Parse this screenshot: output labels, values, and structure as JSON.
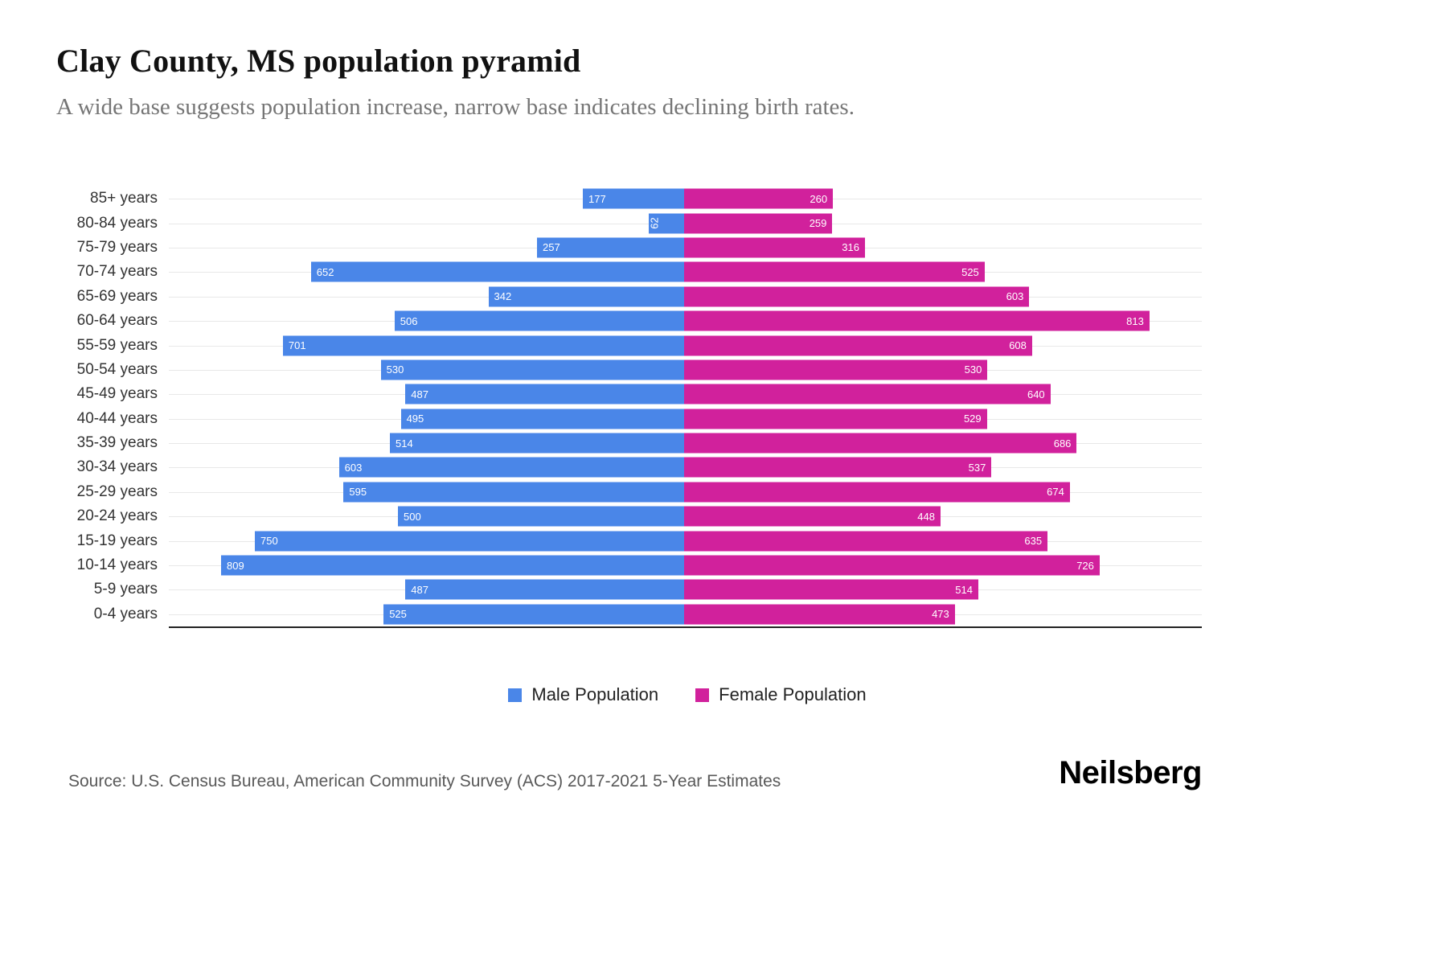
{
  "header": {
    "title": "Clay County, MS population pyramid",
    "subtitle": "A wide base suggests population increase, narrow base indicates declining birth rates."
  },
  "chart_data": {
    "type": "bar",
    "variant": "population-pyramid",
    "orientation": "horizontal",
    "title": "Clay County, MS population pyramid",
    "categories": [
      "85+ years",
      "80-84 years",
      "75-79 years",
      "70-74 years",
      "65-69 years",
      "60-64 years",
      "55-59 years",
      "50-54 years",
      "45-49 years",
      "40-44 years",
      "35-39 years",
      "30-34 years",
      "25-29 years",
      "20-24 years",
      "15-19 years",
      "10-14 years",
      "5-9 years",
      "0-4 years"
    ],
    "series": [
      {
        "name": "Male Population",
        "color": "#4a86e8",
        "values": [
          177,
          62,
          257,
          652,
          342,
          506,
          701,
          530,
          487,
          495,
          514,
          603,
          595,
          500,
          750,
          809,
          487,
          525
        ]
      },
      {
        "name": "Female Population",
        "color": "#d1219c",
        "values": [
          260,
          259,
          316,
          525,
          603,
          813,
          608,
          530,
          640,
          529,
          686,
          537,
          674,
          448,
          635,
          726,
          514,
          473
        ]
      }
    ],
    "value_labels": "inside-outer-end",
    "grid": "horizontal-light",
    "xlim_each_side": [
      0,
      900
    ],
    "legend_position": "bottom-center"
  },
  "legend": {
    "male_label": "Male Population",
    "female_label": "Female Population"
  },
  "footer": {
    "source": "Source: U.S. Census Bureau, American Community Survey (ACS) 2017-2021 5-Year Estimates",
    "logo": "Neilsberg"
  }
}
